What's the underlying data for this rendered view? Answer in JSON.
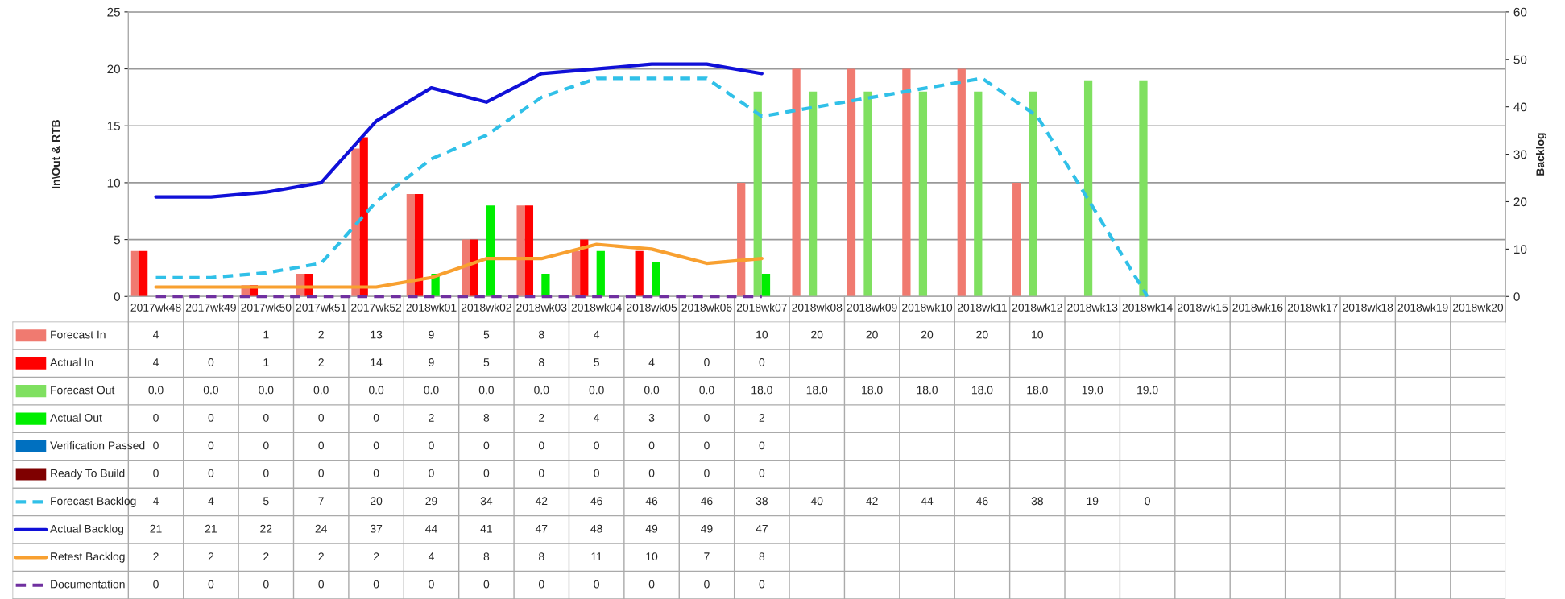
{
  "chart_data": {
    "type": "bar",
    "categories": [
      "2017wk48",
      "2017wk49",
      "2017wk50",
      "2017wk51",
      "2017wk52",
      "2018wk01",
      "2018wk02",
      "2018wk03",
      "2018wk04",
      "2018wk05",
      "2018wk06",
      "2018wk07",
      "2018wk08",
      "2018wk09",
      "2018wk10",
      "2018wk11",
      "2018wk12",
      "2018wk13",
      "2018wk14",
      "2018wk15",
      "2018wk16",
      "2018wk17",
      "2018wk18",
      "2018wk19",
      "2018wk20"
    ],
    "ylabel": "In\\Out & RTB",
    "y2label": "Backlog",
    "ylim": [
      0,
      25
    ],
    "yticks": [
      0,
      5,
      10,
      15,
      20,
      25
    ],
    "y2lim": [
      0,
      60
    ],
    "y2ticks": [
      0,
      10,
      20,
      30,
      40,
      50,
      60
    ],
    "grid": "y",
    "legend": "bottom",
    "data_labels": true,
    "series": [
      {
        "name": "Forecast In",
        "color": "#f07a70",
        "values": [
          4,
          null,
          1,
          2,
          13,
          9,
          5,
          8,
          4,
          null,
          null,
          10,
          20,
          20,
          20,
          20,
          10,
          null,
          null,
          null,
          null,
          null,
          null,
          null,
          null
        ]
      },
      {
        "name": "Actual In",
        "color": "#ff0000",
        "values": [
          4,
          0,
          1,
          2,
          14,
          9,
          5,
          8,
          5,
          4,
          0,
          0,
          null,
          null,
          null,
          null,
          null,
          null,
          null,
          null,
          null,
          null,
          null,
          null,
          null
        ]
      },
      {
        "name": "Forecast Out",
        "color": "#7fe060",
        "values": [
          0,
          0,
          0,
          0,
          0,
          0,
          0,
          0,
          0,
          0,
          0,
          18,
          18,
          18,
          18,
          18,
          18,
          19,
          19,
          null,
          null,
          null,
          null,
          null,
          null
        ],
        "value_labels": [
          "0.0",
          "0.0",
          "0.0",
          "0.0",
          "0.0",
          "0.0",
          "0.0",
          "0.0",
          "0.0",
          "0.0",
          "0.0",
          "18.0",
          "18.0",
          "18.0",
          "18.0",
          "18.0",
          "18.0",
          "19.0",
          "19.0",
          null,
          null,
          null,
          null,
          null,
          null
        ]
      },
      {
        "name": "Actual Out",
        "color": "#00ee00",
        "values": [
          0,
          0,
          0,
          0,
          0,
          2,
          8,
          2,
          4,
          3,
          0,
          2,
          null,
          null,
          null,
          null,
          null,
          null,
          null,
          null,
          null,
          null,
          null,
          null,
          null
        ]
      },
      {
        "name": "Verification Passed",
        "color": "#0070c0",
        "values": [
          0,
          0,
          0,
          0,
          0,
          0,
          0,
          0,
          0,
          0,
          0,
          0,
          null,
          null,
          null,
          null,
          null,
          null,
          null,
          null,
          null,
          null,
          null,
          null,
          null
        ]
      },
      {
        "name": "Ready To Build",
        "color": "#7f0000",
        "values": [
          0,
          0,
          0,
          0,
          0,
          0,
          0,
          0,
          0,
          0,
          0,
          0,
          null,
          null,
          null,
          null,
          null,
          null,
          null,
          null,
          null,
          null,
          null,
          null,
          null
        ]
      },
      {
        "name": "Forecast Backlog",
        "type": "line",
        "axis": "y2",
        "line_style": "dashed",
        "color": "#30c0e8",
        "values": [
          4,
          4,
          5,
          7,
          20,
          29,
          34,
          42,
          46,
          46,
          46,
          38,
          40,
          42,
          44,
          46,
          38,
          19,
          0,
          null,
          null,
          null,
          null,
          null,
          null
        ]
      },
      {
        "name": "Actual Backlog",
        "type": "line",
        "axis": "y2",
        "line_style": "solid",
        "color": "#1010d8",
        "values": [
          21,
          21,
          22,
          24,
          37,
          44,
          41,
          47,
          48,
          49,
          49,
          47,
          null,
          null,
          null,
          null,
          null,
          null,
          null,
          null,
          null,
          null,
          null,
          null,
          null
        ]
      },
      {
        "name": "Retest Backlog",
        "type": "line",
        "axis": "y2",
        "line_style": "solid",
        "color": "#f8a030",
        "values": [
          2,
          2,
          2,
          2,
          2,
          4,
          8,
          8,
          11,
          10,
          7,
          8,
          null,
          null,
          null,
          null,
          null,
          null,
          null,
          null,
          null,
          null,
          null,
          null,
          null
        ]
      },
      {
        "name": "Documentation",
        "type": "line",
        "axis": "y2",
        "line_style": "dashed",
        "color": "#7030a0",
        "values": [
          0,
          0,
          0,
          0,
          0,
          0,
          0,
          0,
          0,
          0,
          0,
          0,
          null,
          null,
          null,
          null,
          null,
          null,
          null,
          null,
          null,
          null,
          null,
          null,
          null
        ]
      }
    ]
  }
}
